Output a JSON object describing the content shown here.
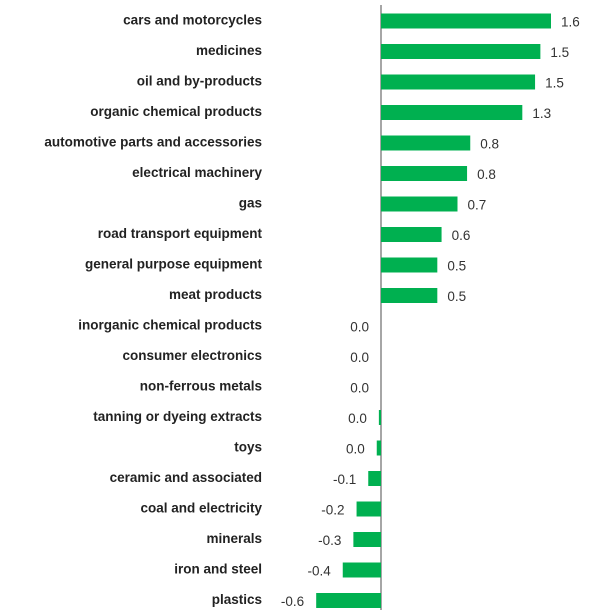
{
  "chart_data": {
    "type": "barh",
    "categories": [
      "cars and motorcycles",
      "medicines",
      "oil and by-products",
      "organic chemical products",
      "automotive parts and accessories",
      "electrical machinery",
      "gas",
      "road transport equipment",
      "general purpose equipment",
      "meat products",
      "inorganic chemical products",
      "consumer electronics",
      "non-ferrous metals",
      "tanning or dyeing extracts",
      "toys",
      "ceramic and associated",
      "coal and electricity",
      "minerals",
      "iron and steel",
      "plastics"
    ],
    "values": [
      1.6,
      1.5,
      1.45,
      1.33,
      0.84,
      0.81,
      0.72,
      0.57,
      0.53,
      0.53,
      0,
      0,
      0,
      -0.02,
      -0.04,
      -0.12,
      -0.23,
      -0.26,
      -0.36,
      -0.61
    ],
    "value_labels": [
      "1.6",
      "1.5",
      "1.5",
      "1.3",
      "0.8",
      "0.8",
      "0.7",
      "0.6",
      "0.5",
      "0.5",
      "0.0",
      "0.0",
      "0.0",
      "0.0",
      "0.0",
      "-0.1",
      "-0.2",
      "-0.3",
      "-0.4",
      "-0.6"
    ],
    "color": "#00b050"
  }
}
